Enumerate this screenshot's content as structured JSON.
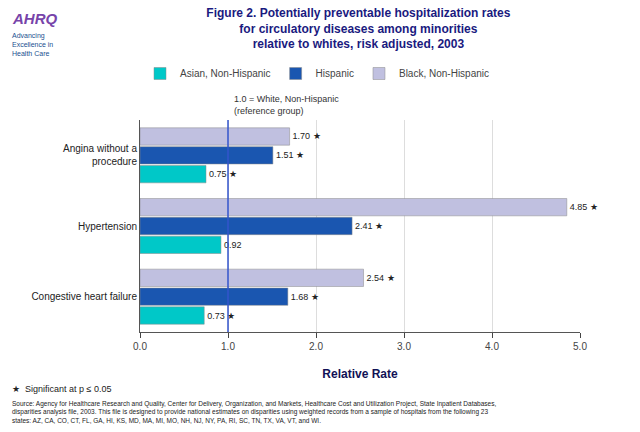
{
  "chart_data": {
    "type": "bar",
    "orientation": "horizontal",
    "title": "Figure 2. Potentially preventable hospitalization rates\nfor circulatory diseases among minorities\nrelative to whites, risk adjusted, 2003",
    "categories": [
      "Angina without a\nprocedure",
      "Hypertension",
      "Congestive heart failure"
    ],
    "series": [
      {
        "name": "Black, Non-Hispanic",
        "color": "#c0c0e0",
        "values": [
          1.7,
          4.85,
          2.54
        ],
        "value_labels": [
          "1.70 ★",
          "4.85 ★",
          "2.54 ★"
        ]
      },
      {
        "name": "Hispanic",
        "color": "#1a56b0",
        "values": [
          1.51,
          2.41,
          1.68
        ],
        "value_labels": [
          "1.51 ★",
          "2.41 ★",
          "1.68 ★"
        ]
      },
      {
        "name": "Asian, Non-Hispanic",
        "color": "#00c8c8",
        "values": [
          0.75,
          0.92,
          0.73
        ],
        "value_labels": [
          "0.75 ★",
          "0.92",
          "0.73 ★"
        ]
      }
    ],
    "data_labels": true,
    "xlabel": "Relative Rate",
    "xlim": [
      0,
      5.0
    ],
    "xticks": [
      {
        "value": 0,
        "label": "0.0"
      },
      {
        "value": 1,
        "label": "1.0"
      },
      {
        "value": 2,
        "label": "2.0"
      },
      {
        "value": 3,
        "label": "3.0"
      },
      {
        "value": 4,
        "label": "4.0"
      },
      {
        "value": 5,
        "label": "5.0"
      }
    ],
    "grid": true,
    "legend": "top",
    "reference_line": {
      "x": 1.0,
      "label": "1.0 = White, Non-Hispanic\n(reference group)",
      "color": "#3355cc"
    },
    "logo_text": "AHRQ",
    "logo_tagline": "Advancing\nExcellence in\nHealth Care",
    "footnote": "★  Significant at p ≤ 0.05",
    "source": "Source: Agency for Healthcare Research and Quality, Center for Delivery, Organization, and Markets, Healthcare Cost and Utilization Project, State Inpatient Databases,\ndisparities analysis file, 2003. This file is designed to provide national estimates on disparities using weighted records from a sample of hospitals from the following 23\nstates: AZ, CA, CO, CT, FL, GA, HI, KS, MD, MA, MI, MO, NH, NJ, NY, PA, RI, SC, TN, TX, VA, VT, and WI."
  }
}
